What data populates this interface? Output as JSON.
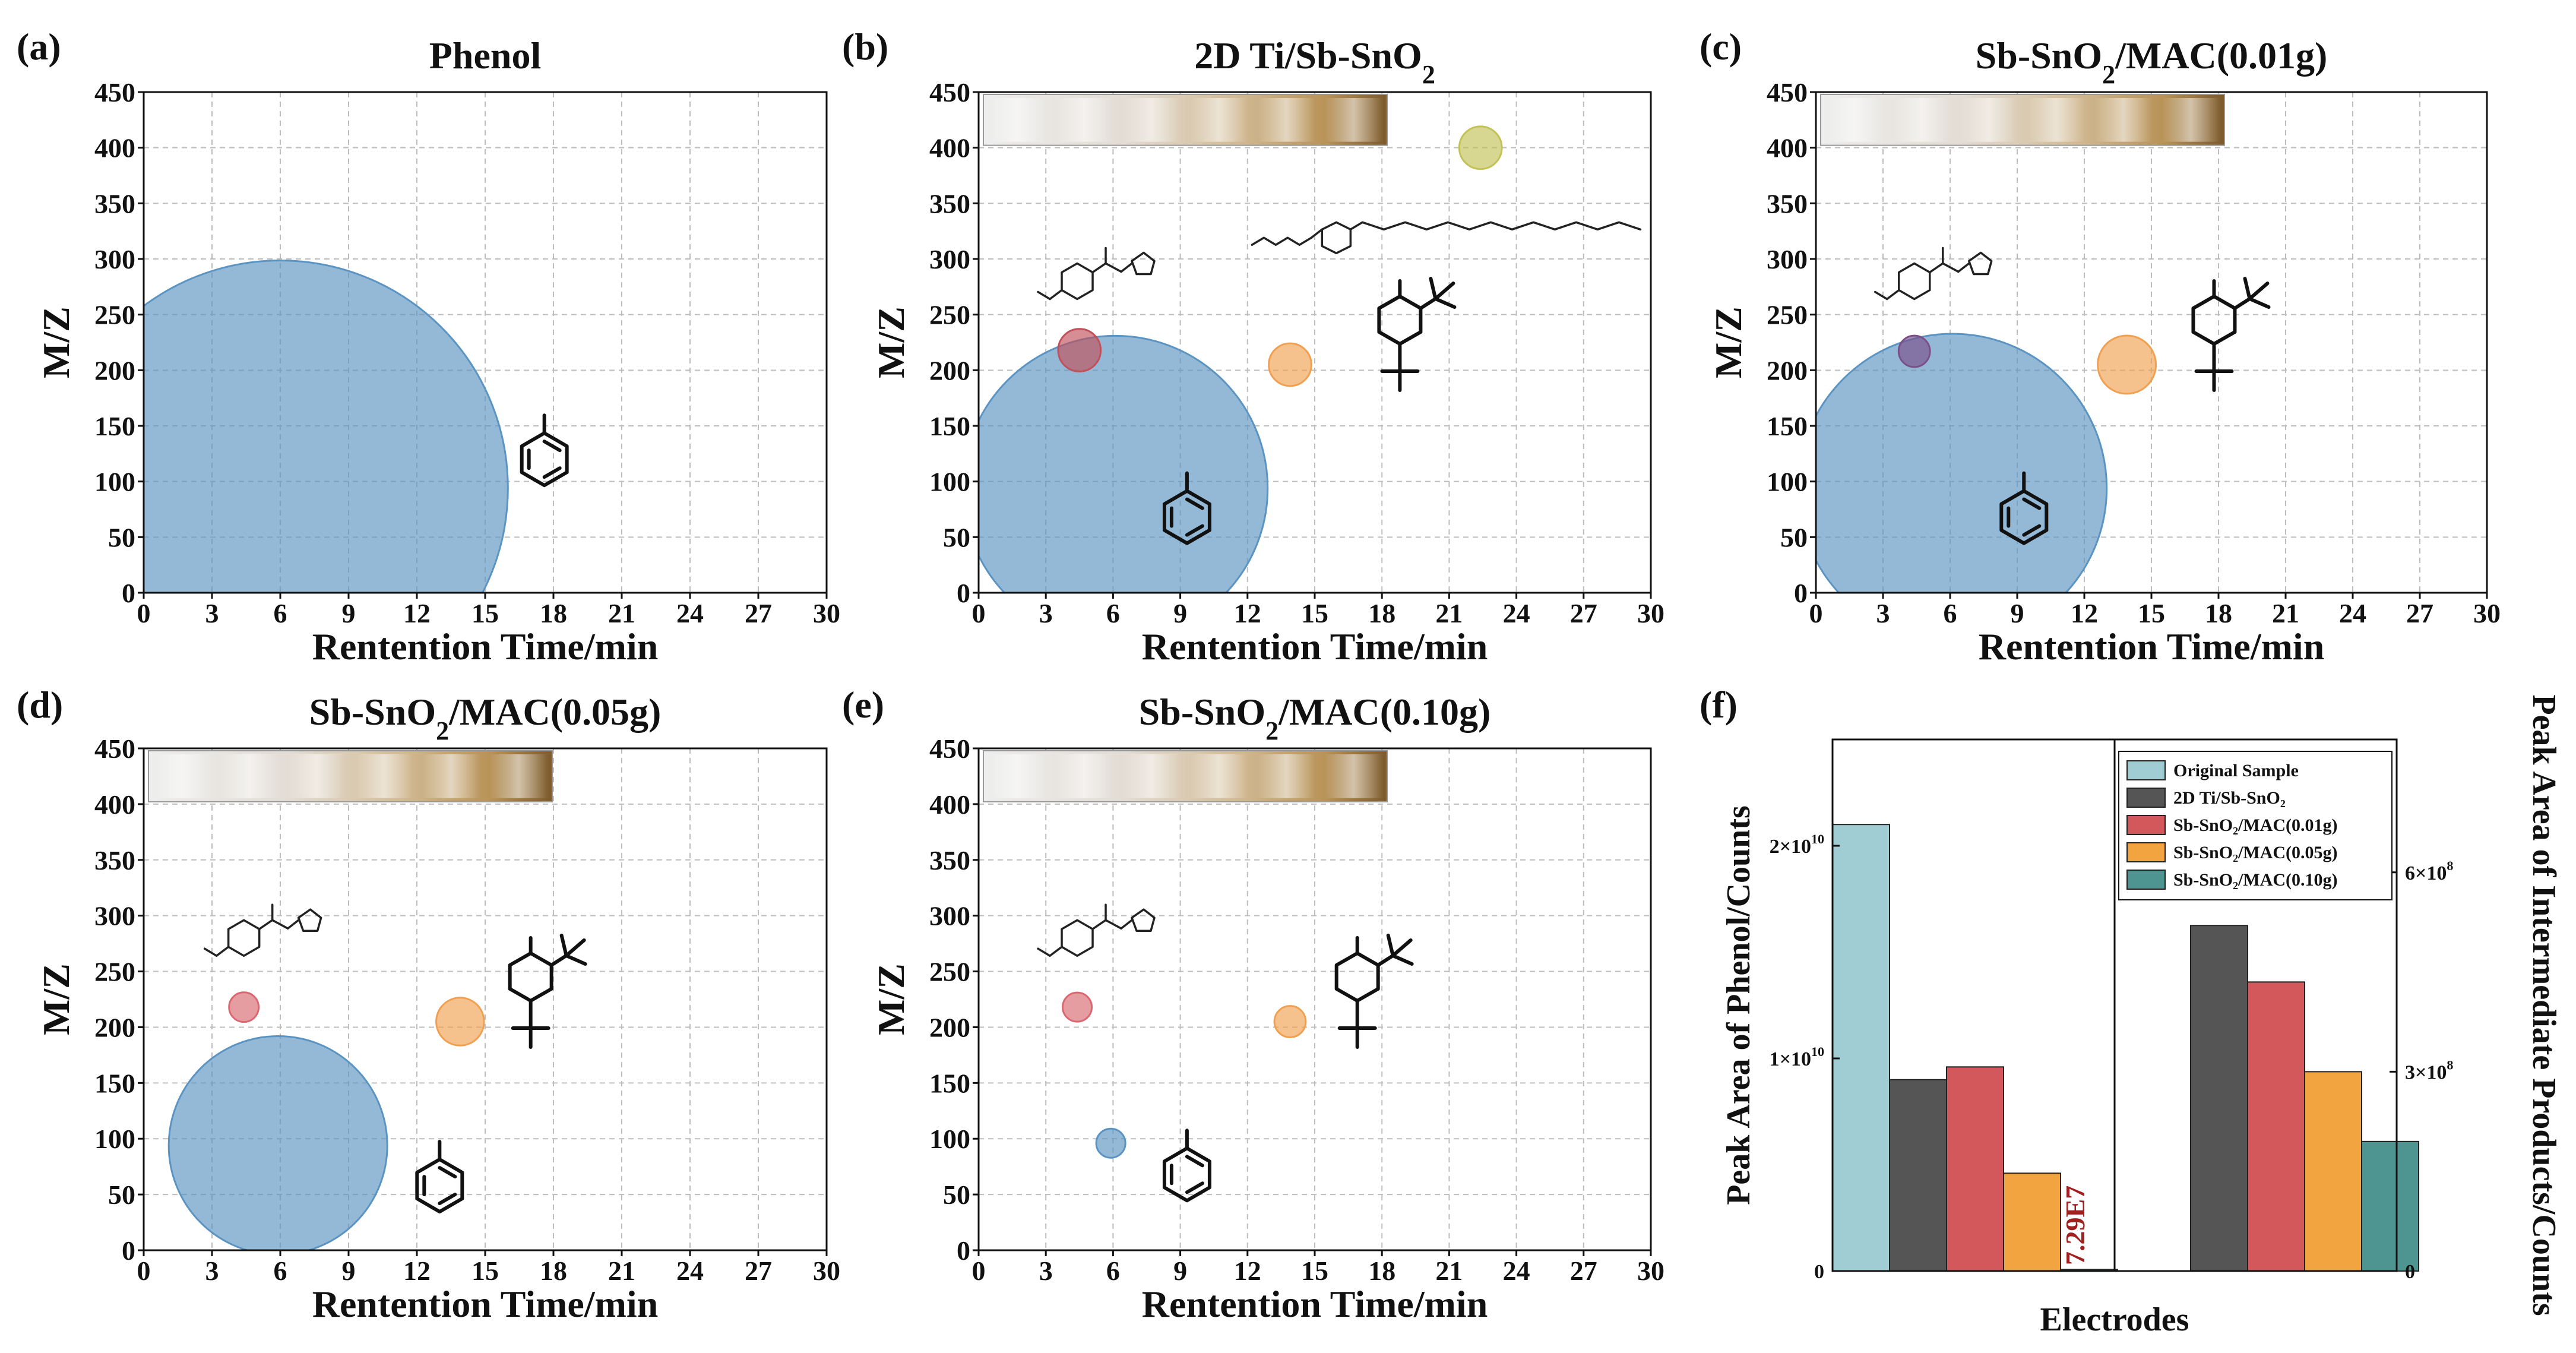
{
  "figure": {
    "panel_labels": [
      "(a)",
      "(b)",
      "(c)",
      "(d)",
      "(e)",
      "(f)"
    ],
    "bar_annotation": "7.29E7"
  },
  "chart_data": [
    {
      "type": "scatter",
      "id": "a",
      "title": "Phenol",
      "xlabel": "Rentention Time/min",
      "ylabel": "M/Z",
      "xlim": [
        0,
        30
      ],
      "ylim": [
        0,
        450
      ],
      "xticks": [
        "0",
        "3",
        "6",
        "9",
        "12",
        "15",
        "18",
        "21",
        "24",
        "27",
        "30"
      ],
      "yticks": [
        "0",
        "50",
        "100",
        "150",
        "200",
        "250",
        "300",
        "350",
        "400",
        "450"
      ],
      "grid": true,
      "vial_strip": false,
      "bubbles": [
        {
          "label": "Phenol",
          "x": 6.0,
          "y": 94,
          "radius_min": 10.0,
          "color": "#5b94c2"
        }
      ]
    },
    {
      "type": "scatter",
      "id": "b",
      "title": "2D Ti/Sb-SnO",
      "title_sub": "2",
      "xlabel": "Rentention Time/min",
      "ylabel": "M/Z",
      "xlim": [
        0,
        30
      ],
      "ylim": [
        0,
        450
      ],
      "xticks": [
        "0",
        "3",
        "6",
        "9",
        "12",
        "15",
        "18",
        "21",
        "24",
        "27",
        "30"
      ],
      "yticks": [
        "0",
        "50",
        "100",
        "150",
        "200",
        "250",
        "300",
        "350",
        "400",
        "450"
      ],
      "grid": true,
      "vial_strip": true,
      "bubbles": [
        {
          "label": "Phenol",
          "x": 6.1,
          "y": 94,
          "radius_min": 6.8,
          "color": "#5b94c2"
        },
        {
          "label": "Ester intermediate",
          "x": 4.5,
          "y": 218,
          "radius_min": 0.95,
          "color": "#c0505a"
        },
        {
          "label": "2,4-di-tert-butylphenol",
          "x": 13.9,
          "y": 205,
          "radius_min": 0.95,
          "color": "#f0a050"
        },
        {
          "label": "Octylphenol ethoxylate",
          "x": 22.4,
          "y": 400,
          "radius_min": 0.95,
          "color": "#c2c257"
        }
      ]
    },
    {
      "type": "scatter",
      "id": "c",
      "title": "Sb-SnO",
      "title_sub": "2",
      "title_tail": "/MAC(0.01g)",
      "xlabel": "Rentention Time/min",
      "ylabel": "M/Z",
      "xlim": [
        0,
        30
      ],
      "ylim": [
        0,
        450
      ],
      "xticks": [
        "0",
        "3",
        "6",
        "9",
        "12",
        "15",
        "18",
        "21",
        "24",
        "27",
        "30"
      ],
      "yticks": [
        "0",
        "50",
        "100",
        "150",
        "200",
        "250",
        "300",
        "350",
        "400",
        "450"
      ],
      "grid": true,
      "vial_strip": true,
      "bubbles": [
        {
          "label": "Phenol",
          "x": 6.1,
          "y": 94,
          "radius_min": 6.9,
          "color": "#5b94c2"
        },
        {
          "label": "Ester intermediate",
          "x": 4.4,
          "y": 217,
          "radius_min": 0.7,
          "color": "#7b4f8a"
        },
        {
          "label": "2,4-di-tert-butylphenol",
          "x": 13.9,
          "y": 205,
          "radius_min": 1.3,
          "color": "#f0a050"
        }
      ]
    },
    {
      "type": "scatter",
      "id": "d",
      "title": "Sb-SnO",
      "title_sub": "2",
      "title_tail": "/MAC(0.05g)",
      "xlabel": "Rentention Time/min",
      "ylabel": "M/Z",
      "xlim": [
        0,
        30
      ],
      "ylim": [
        0,
        450
      ],
      "xticks": [
        "0",
        "3",
        "6",
        "9",
        "12",
        "15",
        "18",
        "21",
        "24",
        "27",
        "30"
      ],
      "yticks": [
        "0",
        "50",
        "100",
        "150",
        "200",
        "250",
        "300",
        "350",
        "400",
        "450"
      ],
      "grid": true,
      "vial_strip": true,
      "bubbles": [
        {
          "label": "Phenol",
          "x": 5.9,
          "y": 94,
          "radius_min": 4.8,
          "color": "#5b94c2"
        },
        {
          "label": "Ester intermediate",
          "x": 4.4,
          "y": 218,
          "radius_min": 0.65,
          "color": "#d96870"
        },
        {
          "label": "2,4-di-tert-butylphenol",
          "x": 13.9,
          "y": 205,
          "radius_min": 1.05,
          "color": "#f0a050"
        }
      ]
    },
    {
      "type": "scatter",
      "id": "e",
      "title": "Sb-SnO",
      "title_sub": "2",
      "title_tail": "/MAC(0.10g)",
      "xlabel": "Rentention Time/min",
      "ylabel": "M/Z",
      "xlim": [
        0,
        30
      ],
      "ylim": [
        0,
        450
      ],
      "xticks": [
        "0",
        "3",
        "6",
        "9",
        "12",
        "15",
        "18",
        "21",
        "24",
        "27",
        "30"
      ],
      "yticks": [
        "0",
        "50",
        "100",
        "150",
        "200",
        "250",
        "300",
        "350",
        "400",
        "450"
      ],
      "grid": true,
      "vial_strip": true,
      "bubbles": [
        {
          "label": "Phenol",
          "x": 5.9,
          "y": 96,
          "radius_min": 0.65,
          "color": "#5b94c2"
        },
        {
          "label": "Ester intermediate",
          "x": 4.4,
          "y": 218,
          "radius_min": 0.65,
          "color": "#d96870"
        },
        {
          "label": "2,4-di-tert-butylphenol",
          "x": 13.9,
          "y": 205,
          "radius_min": 0.7,
          "color": "#f0a050"
        }
      ]
    },
    {
      "type": "bar",
      "id": "f",
      "xlabel": "Electrodes",
      "ylabel_left": "Peak Area of Phenol/Counts",
      "ylabel_right": "Peak Area of Intermediate Products/Counts",
      "ylim_left": [
        0,
        25000000000.0
      ],
      "ylim_right": [
        0,
        800000000.0
      ],
      "yticks_left": [
        {
          "v": 0,
          "base": "0",
          "exp": ""
        },
        {
          "v": 10000000000.0,
          "base": "1×10",
          "exp": "10"
        },
        {
          "v": 20000000000.0,
          "base": "2×10",
          "exp": "10"
        }
      ],
      "yticks_right": [
        {
          "v": 0,
          "base": "0",
          "exp": ""
        },
        {
          "v": 300000000.0,
          "base": "3×10",
          "exp": "8"
        },
        {
          "v": 600000000.0,
          "base": "6×10",
          "exp": "8"
        }
      ],
      "legend": [
        {
          "name": "Original Sample",
          "color": "#9fcdd3"
        },
        {
          "name": "2D Ti/Sb-SnO₂",
          "color": "#555555"
        },
        {
          "name": "Sb-SnO₂/MAC(0.01g)",
          "color": "#d2585c"
        },
        {
          "name": "Sb-SnO₂/MAC(0.05g)",
          "color": "#f2a440"
        },
        {
          "name": "Sb-SnO₂/MAC(0.10g)",
          "color": "#4e9490"
        }
      ],
      "series_phenol_left_axis": [
        {
          "name": "Original Sample",
          "value": 21000000000.0,
          "color": "#9fcdd3"
        },
        {
          "name": "2D Ti/Sb-SnO2",
          "value": 9000000000.0,
          "color": "#555555"
        },
        {
          "name": "Sb-SnO2/MAC(0.01g)",
          "value": 9600000000.0,
          "color": "#d2585c"
        },
        {
          "name": "Sb-SnO2/MAC(0.05g)",
          "value": 4600000000.0,
          "color": "#f2a440"
        },
        {
          "name": "Sb-SnO2/MAC(0.10g)",
          "value": 72900000.0,
          "color": "#4e9490"
        }
      ],
      "series_intermediate_right_axis": [
        {
          "name": "2D Ti/Sb-SnO2",
          "value": 520000000.0,
          "color": "#555555"
        },
        {
          "name": "Sb-SnO2/MAC(0.01g)",
          "value": 435000000.0,
          "color": "#d2585c"
        },
        {
          "name": "Sb-SnO2/MAC(0.05g)",
          "value": 300000000.0,
          "color": "#f2a440"
        },
        {
          "name": "Sb-SnO2/MAC(0.10g)",
          "value": 195000000.0,
          "color": "#4e9490"
        }
      ]
    }
  ]
}
